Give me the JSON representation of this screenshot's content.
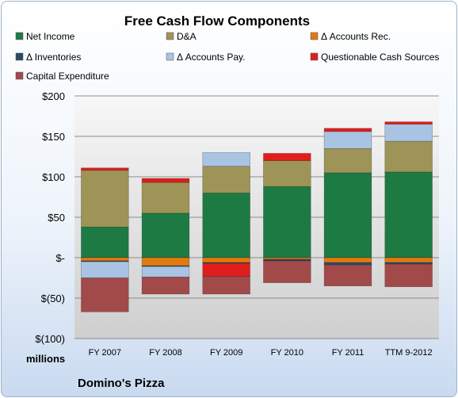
{
  "chart_data": {
    "type": "bar",
    "stacked": true,
    "title": "Free Cash Flow Components",
    "units_label": "millions",
    "company": "Domino's Pizza",
    "categories": [
      "FY 2007",
      "FY 2008",
      "FY 2009",
      "FY 2010",
      "FY 2011",
      "TTM 9-2012"
    ],
    "ylim": [
      -100,
      200
    ],
    "yticks": [
      200,
      150,
      100,
      50,
      0,
      -50,
      -100
    ],
    "ytick_labels": [
      "$200",
      "$150",
      "$100",
      "$50",
      "$-",
      "$(50)",
      "$(100)"
    ],
    "grid": true,
    "legend_position": "top",
    "series": [
      {
        "name": "Net Income",
        "color": "#1e7a43",
        "values": [
          38,
          55,
          80,
          88,
          105,
          106
        ]
      },
      {
        "name": "D&A",
        "color": "#9e9458",
        "values": [
          70,
          38,
          33,
          32,
          30,
          38
        ]
      },
      {
        "name": "Δ Accounts Rec.",
        "color": "#e07a10",
        "values": [
          -4,
          -10,
          -6,
          -2,
          -6,
          -6
        ]
      },
      {
        "name": "Δ Inventories",
        "color": "#2c4a68",
        "values": [
          -1,
          -1,
          -1,
          -2,
          -3,
          -2
        ]
      },
      {
        "name": "Δ Accounts Pay.",
        "color": "#a9c3e3",
        "values": [
          -20,
          -13,
          17,
          0,
          21,
          21
        ]
      },
      {
        "name": "Questionable Cash Sources",
        "color": "#e01e1e",
        "values": [
          3,
          5,
          -16,
          9,
          4,
          3
        ]
      },
      {
        "name": "Capital Expenditure",
        "color": "#a24a4a",
        "values": [
          -42,
          -21,
          -22,
          -27,
          -26,
          -28
        ]
      }
    ]
  }
}
